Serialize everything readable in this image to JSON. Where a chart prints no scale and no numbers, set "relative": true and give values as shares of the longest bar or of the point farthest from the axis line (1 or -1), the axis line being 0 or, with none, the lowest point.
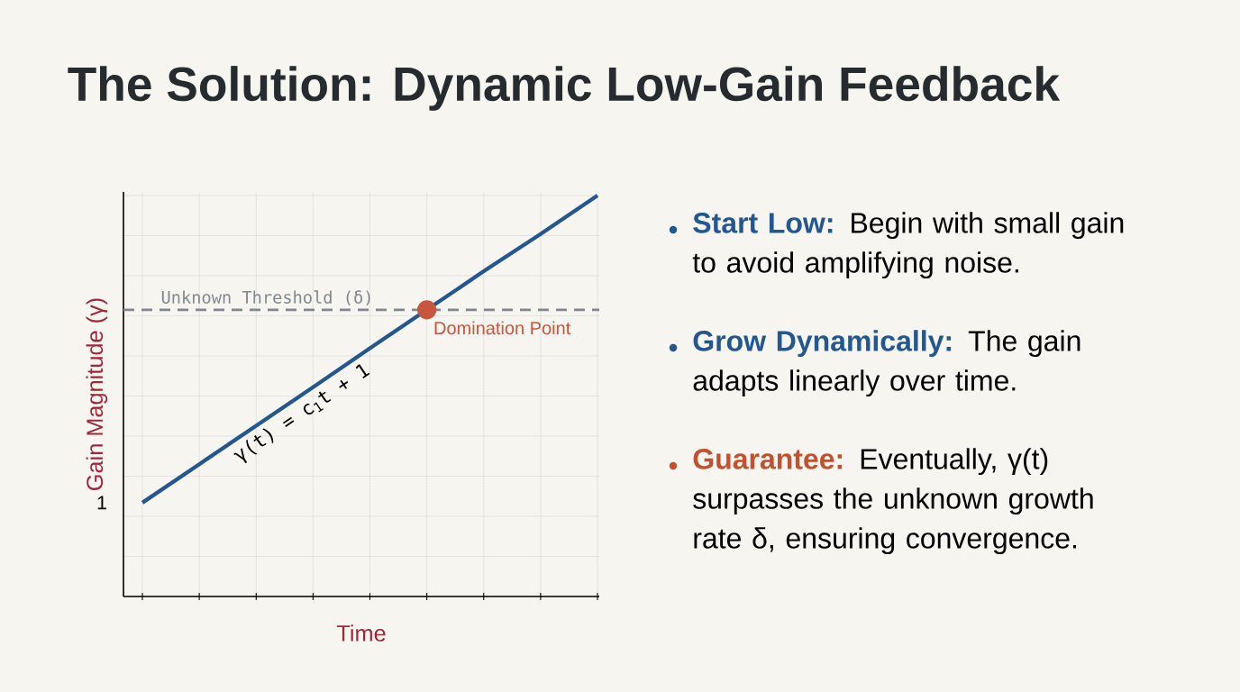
{
  "chart_data": {
    "type": "line",
    "title": "The Solution: Dynamic Low-Gain Feedback",
    "xlabel": "Time",
    "ylabel": "Gain Magnitude (γ)",
    "relative": true,
    "grid": true,
    "categories": [
      null,
      null,
      null,
      null,
      null,
      null,
      null,
      null,
      null
    ],
    "series": [
      {
        "color": "#24578f",
        "values": [
          0.234,
          0.33,
          0.426,
          0.522,
          0.619,
          0.715,
          0.811,
          0.904,
          1
        ]
      }
    ],
    "ref_lines": [
      {
        "axis": "y",
        "value": 0.715,
        "label": "Unknown Threshold (δ)",
        "color": "#7f8790",
        "line_style": "dashed"
      }
    ],
    "annotations": [
      "1",
      {
        "text": "Domination Point",
        "y": 0.715
      },
      "γ(t) = c$_{1}$t + 1",
      "**Start Low:** Begin with small gain to avoid amplifying noise.",
      "**Grow Dynamically:** The gain adapts linearly over time.",
      "**Guarantee:** Eventually, γ(t) surpasses the unknown growth rate δ, ensuring convergence."
    ]
  }
}
